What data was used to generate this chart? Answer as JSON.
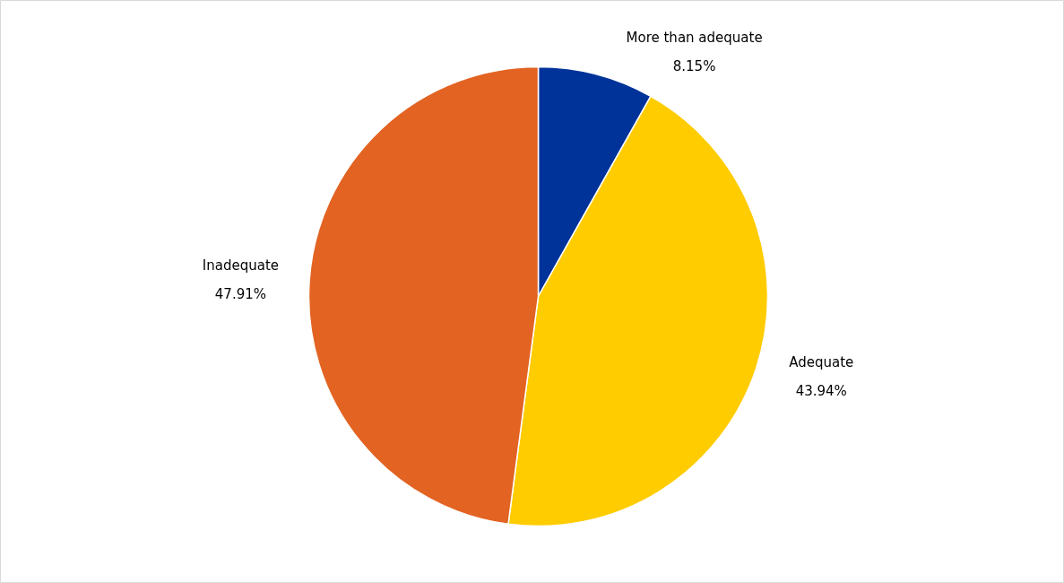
{
  "chart_data": {
    "type": "pie",
    "categories": [
      "More than adequate",
      "Adequate",
      "Inadequate"
    ],
    "values": [
      8.15,
      43.94,
      47.91
    ],
    "value_labels": [
      "8.15%",
      "43.94%",
      "47.91%"
    ],
    "colors": [
      "#003399",
      "#ffcc00",
      "#e26322"
    ]
  }
}
